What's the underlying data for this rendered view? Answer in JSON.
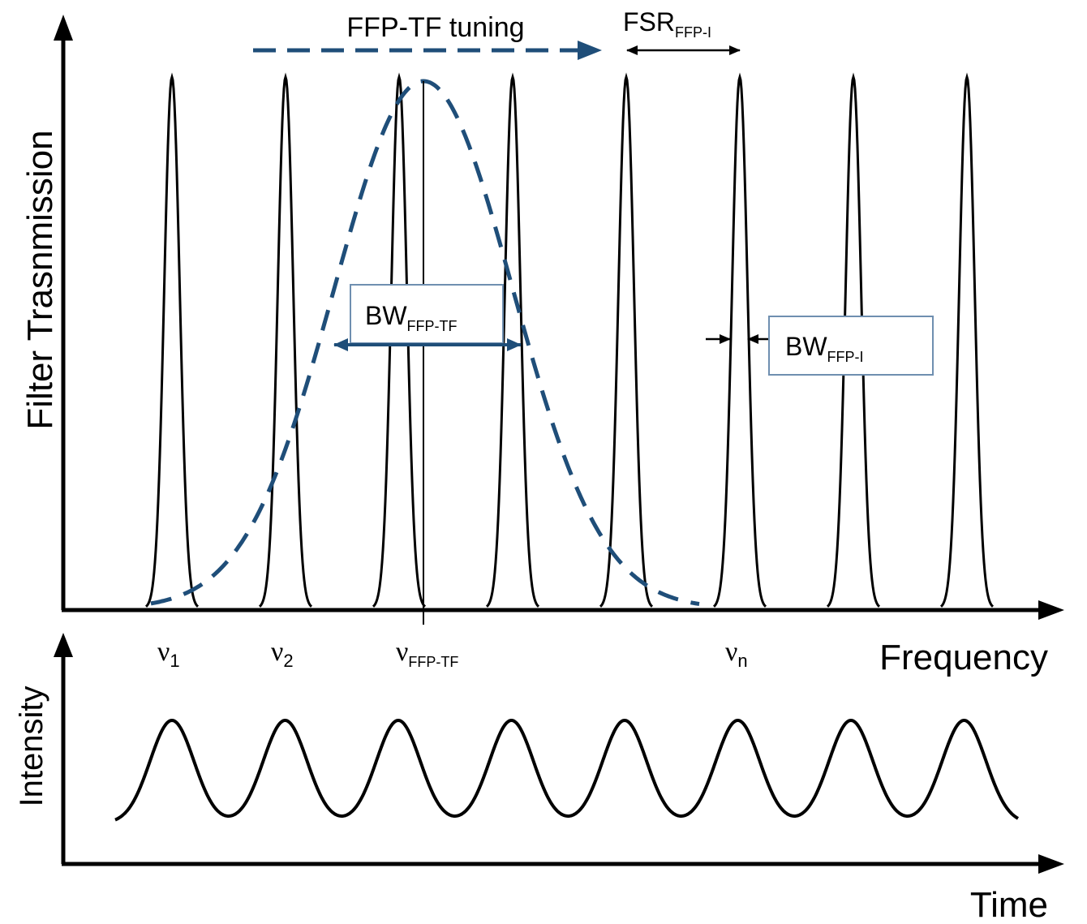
{
  "top_plot": {
    "ylabel": "Filter Trasnmission",
    "xlabel": "Frequency",
    "tuning_label": "FFP-TF tuning",
    "fsr_label": {
      "main": "FSR",
      "sub": "FFP-I"
    },
    "bw_tf_label": {
      "main": "BW",
      "sub": "FFP-TF"
    },
    "bw_i_label": {
      "main": "BW",
      "sub": "FFP-I"
    },
    "nu_labels": [
      {
        "main": "ν",
        "sub": "1"
      },
      {
        "main": "ν",
        "sub": "2"
      },
      {
        "main": "ν",
        "sub": "FFP-TF"
      },
      {
        "main": "ν",
        "sub": "n"
      }
    ],
    "peak_count": 8
  },
  "bottom_plot": {
    "ylabel": "Intensity",
    "xlabel": "Time",
    "pulse_count": 8
  },
  "colors": {
    "ink": "#000000",
    "dashed_curve": "#1f4e79",
    "box_border": "#6f8fb0"
  }
}
